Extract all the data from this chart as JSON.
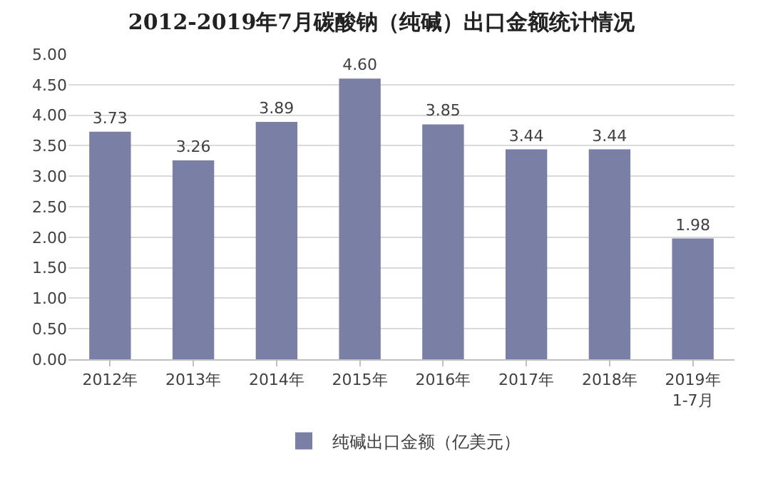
{
  "chart_data": {
    "type": "bar",
    "title": "2012-2019年7月碳酸钠（纯碱）出口金额统计情况",
    "categories": [
      "2012年",
      "2013年",
      "2014年",
      "2015年",
      "2016年",
      "2017年",
      "2018年",
      "2019年\n1-7月"
    ],
    "series": [
      {
        "name": "纯碱出口金额（亿美元）",
        "color": "#7a7fa5",
        "values": [
          3.73,
          3.26,
          3.89,
          4.6,
          3.85,
          3.44,
          3.44,
          1.98
        ],
        "value_labels": [
          "3.73",
          "3.26",
          "3.89",
          "4.60",
          "3.85",
          "3.44",
          "3.44",
          "1.98"
        ]
      }
    ],
    "ylim": [
      0,
      5
    ],
    "yticks": [
      {
        "value": 0,
        "label": "0.00"
      },
      {
        "value": 0.5,
        "label": "0.50"
      },
      {
        "value": 1,
        "label": "1.00"
      },
      {
        "value": 1.5,
        "label": "1.50"
      },
      {
        "value": 2,
        "label": "2.00"
      },
      {
        "value": 2.5,
        "label": "2.50"
      },
      {
        "value": 3,
        "label": "3.00"
      },
      {
        "value": 3.5,
        "label": "3.50"
      },
      {
        "value": 4,
        "label": "4.00"
      },
      {
        "value": 4.5,
        "label": "4.50"
      },
      {
        "value": 5,
        "label": "5.00"
      }
    ],
    "grid": "y",
    "legend": "bottom"
  }
}
